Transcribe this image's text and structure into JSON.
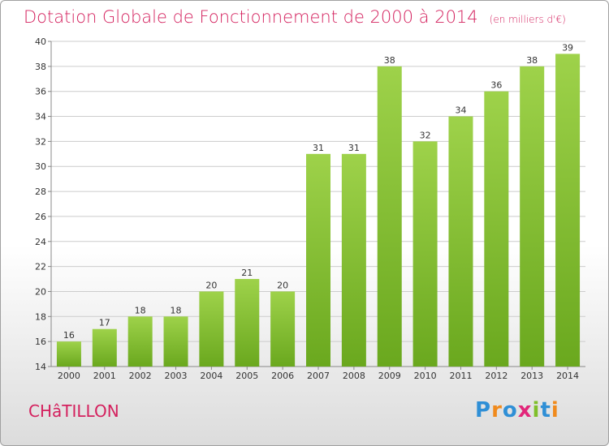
{
  "title": "Dotation Globale de Fonctionnement de 2000 à 2014",
  "unit": "(en milliers d'€)",
  "place": "CHâTILLON",
  "brand": {
    "letters": [
      "P",
      "r",
      "o",
      "x",
      "i",
      "t",
      "i"
    ]
  },
  "colors": {
    "accent": "#d4215e",
    "bar_light": "#9ed24a",
    "bar_dark": "#6aa81e",
    "grid": "#cccccc"
  },
  "chart_data": {
    "type": "bar",
    "categories": [
      "2000",
      "2001",
      "2002",
      "2003",
      "2004",
      "2005",
      "2006",
      "2007",
      "2008",
      "2009",
      "2010",
      "2011",
      "2012",
      "2013",
      "2014"
    ],
    "values": [
      16,
      17,
      18,
      18,
      20,
      21,
      20,
      31,
      31,
      38,
      32,
      34,
      36,
      38,
      39
    ],
    "ylim": [
      14,
      40
    ],
    "yticks": [
      14,
      16,
      18,
      20,
      22,
      24,
      26,
      28,
      30,
      32,
      34,
      36,
      38,
      40
    ],
    "grid": true
  }
}
